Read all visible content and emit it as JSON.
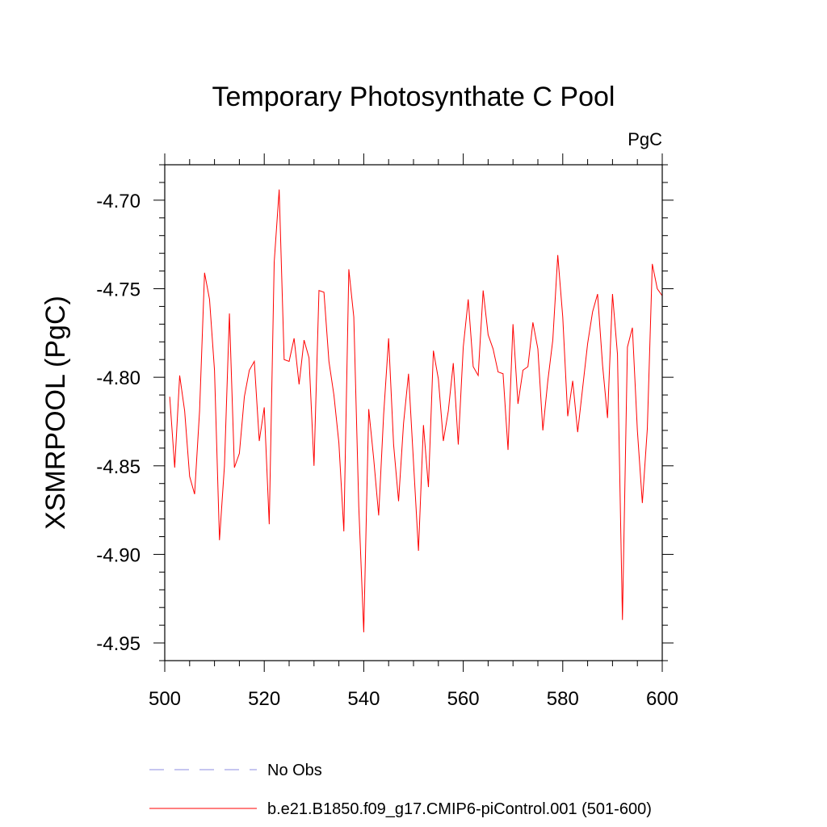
{
  "chart_data": {
    "type": "line",
    "title": "Temporary Photosynthate C Pool",
    "units_label": "PgC",
    "ylabel": "XSMRPOOL  (PgC)",
    "xlabel": "",
    "xlim": [
      500,
      600
    ],
    "ylim": [
      -4.96,
      -4.68
    ],
    "x_ticks": [
      500,
      520,
      540,
      560,
      580,
      600
    ],
    "x_tick_labels": [
      "500",
      "520",
      "540",
      "560",
      "580",
      "600"
    ],
    "y_ticks": [
      -4.95,
      -4.9,
      -4.85,
      -4.8,
      -4.75,
      -4.7
    ],
    "y_tick_labels": [
      "-4.95",
      "-4.90",
      "-4.85",
      "-4.80",
      "-4.75",
      "-4.70"
    ],
    "series": [
      {
        "name": "b.e21.B1850.f09_g17.CMIP6-piControl.001 (501-600)",
        "color": "#ff0000",
        "style": "solid",
        "x_start": 501,
        "values": [
          -4.811,
          -4.851,
          -4.799,
          -4.819,
          -4.856,
          -4.866,
          -4.819,
          -4.741,
          -4.756,
          -4.796,
          -4.892,
          -4.85,
          -4.764,
          -4.851,
          -4.843,
          -4.811,
          -4.796,
          -4.791,
          -4.836,
          -4.817,
          -4.883,
          -4.735,
          -4.694,
          -4.79,
          -4.791,
          -4.778,
          -4.804,
          -4.779,
          -4.789,
          -4.85,
          -4.751,
          -4.752,
          -4.791,
          -4.81,
          -4.837,
          -4.887,
          -4.739,
          -4.766,
          -4.873,
          -4.944,
          -4.818,
          -4.846,
          -4.878,
          -4.821,
          -4.778,
          -4.838,
          -4.87,
          -4.826,
          -4.798,
          -4.848,
          -4.898,
          -4.827,
          -4.862,
          -4.785,
          -4.801,
          -4.836,
          -4.819,
          -4.792,
          -4.838,
          -4.783,
          -4.756,
          -4.794,
          -4.799,
          -4.751,
          -4.776,
          -4.784,
          -4.797,
          -4.798,
          -4.841,
          -4.77,
          -4.815,
          -4.796,
          -4.794,
          -4.769,
          -4.784,
          -4.83,
          -4.802,
          -4.779,
          -4.731,
          -4.766,
          -4.822,
          -4.802,
          -4.831,
          -4.806,
          -4.781,
          -4.763,
          -4.753,
          -4.793,
          -4.823,
          -4.753,
          -4.787,
          -4.937,
          -4.783,
          -4.772,
          -4.83,
          -4.871,
          -4.829,
          -4.736,
          -4.75,
          -4.754
        ]
      }
    ],
    "legend": [
      {
        "label": "No Obs",
        "color": "#8c8ce0",
        "style": "dashed"
      },
      {
        "label": "b.e21.B1850.f09_g17.CMIP6-piControl.001 (501-600)",
        "color": "#ff0000",
        "style": "solid"
      }
    ]
  }
}
